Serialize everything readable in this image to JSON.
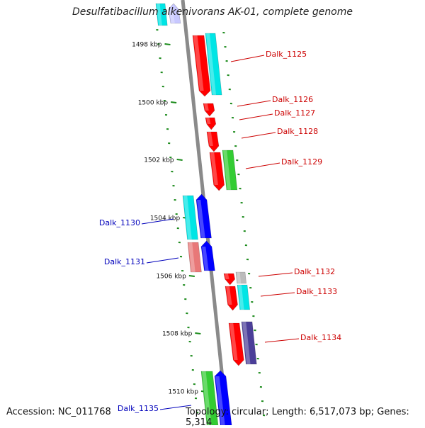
{
  "title": "Desulfatibacillum alkenivorans AK-01, complete genome",
  "footer": {
    "accession": "Accession: NC_011768",
    "summary": "Topology: circular; Length: 6,517,073 bp; Genes: 5,314"
  },
  "ticks": [
    {
      "label": "1498 kbp"
    },
    {
      "label": "1500 kbp"
    },
    {
      "label": "1502 kbp"
    },
    {
      "label": "1504 kbp"
    },
    {
      "label": "1506 kbp"
    },
    {
      "label": "1508 kbp"
    },
    {
      "label": "1510 kbp"
    }
  ],
  "genes": [
    {
      "label": "Dalk_1125",
      "strand": "plus",
      "labelColor": "#cc0000"
    },
    {
      "label": "Dalk_1126",
      "strand": "plus",
      "labelColor": "#cc0000"
    },
    {
      "label": "Dalk_1127",
      "strand": "plus",
      "labelColor": "#cc0000"
    },
    {
      "label": "Dalk_1128",
      "strand": "plus",
      "labelColor": "#cc0000"
    },
    {
      "label": "Dalk_1129",
      "strand": "plus",
      "labelColor": "#cc0000"
    },
    {
      "label": "Dalk_1130",
      "strand": "minus",
      "labelColor": "#0000bb"
    },
    {
      "label": "Dalk_1131",
      "strand": "minus",
      "labelColor": "#0000bb"
    },
    {
      "label": "Dalk_1132",
      "strand": "plus",
      "labelColor": "#cc0000"
    },
    {
      "label": "Dalk_1133",
      "strand": "plus",
      "labelColor": "#cc0000"
    },
    {
      "label": "Dalk_1134",
      "strand": "plus",
      "labelColor": "#cc0000"
    },
    {
      "label": "Dalk_1135",
      "strand": "minus",
      "labelColor": "#0000bb"
    }
  ],
  "colors": {
    "backbone": "#8a8a8a",
    "gridDash": "#1a8a1a",
    "cds": "#ff0000",
    "cdsMinus": "#0000ff",
    "rna": "#00e5e5",
    "green": "#33cc33",
    "pink": "#e87878",
    "purple": "#4b3f99",
    "grey": "#bbbbbb",
    "lavender": "#c8c8ff"
  }
}
